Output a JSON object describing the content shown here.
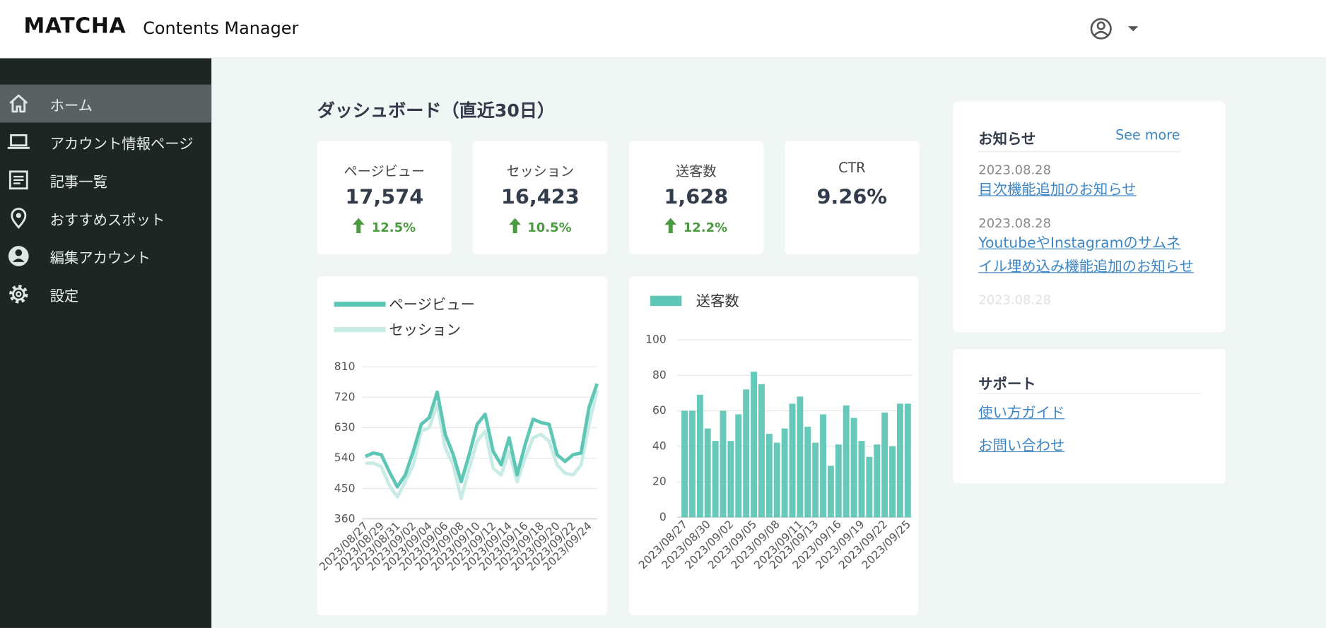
{
  "header": {
    "logo": "MATCHA",
    "subtitle": "Contents Manager"
  },
  "sidebar": {
    "items": [
      {
        "label": "ホーム",
        "active": true
      },
      {
        "label": "アカウント情報ページ",
        "active": false
      },
      {
        "label": "記事一覧",
        "active": false
      },
      {
        "label": "おすすめスポット",
        "active": false
      },
      {
        "label": "編集アカウント",
        "active": false
      },
      {
        "label": "設定",
        "active": false
      }
    ]
  },
  "dashboard": {
    "title": "ダッシュボード（直近30日）",
    "stats": [
      {
        "label": "ページビュー",
        "value": "17,574",
        "change": "12.5%"
      },
      {
        "label": "セッション",
        "value": "16,423",
        "change": "10.5%"
      },
      {
        "label": "送客数",
        "value": "1,628",
        "change": "12.2%"
      },
      {
        "label": "CTR",
        "value": "9.26%"
      }
    ]
  },
  "notices": {
    "title": "お知らせ",
    "see_more": "See more",
    "items": [
      {
        "date": "2023.08.28",
        "title": "目次機能追加のお知らせ"
      },
      {
        "date": "2023.08.28",
        "title": "YoutubeやInstagramのサムネイル埋め込み機能追加のお知らせ"
      },
      {
        "date": "2023.08.28"
      }
    ]
  },
  "support": {
    "title": "サポート",
    "links": [
      "使い方ガイド",
      "お問い合わせ"
    ]
  },
  "chart_data": [
    {
      "type": "line",
      "categories": [
        "2023/08/27",
        null,
        "2023/08/29",
        null,
        "2023/08/31",
        null,
        "2023/09/02",
        null,
        "2023/09/04",
        null,
        "2023/09/06",
        null,
        "2023/09/08",
        null,
        "2023/09/10",
        null,
        "2023/09/12",
        null,
        "2023/09/14",
        null,
        "2023/09/16",
        null,
        "2023/09/18",
        null,
        "2023/09/20",
        null,
        "2023/09/22",
        null,
        "2023/09/24",
        null
      ],
      "series": [
        {
          "name": "ページビュー",
          "color": "#5ec6b5",
          "values": [
            545,
            555,
            550,
            500,
            455,
            490,
            560,
            640,
            660,
            735,
            610,
            550,
            470,
            550,
            640,
            670,
            560,
            520,
            600,
            490,
            580,
            655,
            645,
            640,
            550,
            530,
            550,
            555,
            690,
            760
          ]
        },
        {
          "name": "セッション",
          "color": "#c8ebe5",
          "values": [
            525,
            525,
            515,
            460,
            425,
            470,
            520,
            620,
            630,
            700,
            570,
            520,
            420,
            510,
            590,
            620,
            510,
            490,
            560,
            470,
            540,
            600,
            610,
            590,
            520,
            495,
            490,
            520,
            640,
            740
          ]
        }
      ],
      "ylim": [
        360,
        810
      ],
      "yticks": [
        360,
        450,
        540,
        630,
        720,
        810
      ],
      "grid": true
    },
    {
      "type": "bar",
      "categories": [
        "2023/08/27",
        null,
        null,
        "2023/08/30",
        null,
        null,
        "2023/09/02",
        null,
        null,
        "2023/09/05",
        null,
        null,
        "2023/09/08",
        null,
        null,
        "2023/09/11",
        null,
        "2023/09/13",
        null,
        null,
        "2023/09/16",
        null,
        null,
        "2023/09/19",
        null,
        null,
        "2023/09/22",
        null,
        null,
        "2023/09/25"
      ],
      "series": [
        {
          "name": "送客数",
          "color": "#5ec6b5",
          "values": [
            60,
            60,
            69,
            50,
            43,
            60,
            43,
            58,
            72,
            82,
            75,
            47,
            42,
            50,
            64,
            68,
            51,
            42,
            58,
            29,
            41,
            63,
            56,
            43,
            34,
            41,
            59,
            40,
            64,
            64
          ]
        }
      ],
      "ylim": [
        0,
        100
      ],
      "yticks": [
        0,
        20,
        40,
        60,
        80,
        100
      ],
      "grid": true
    }
  ]
}
